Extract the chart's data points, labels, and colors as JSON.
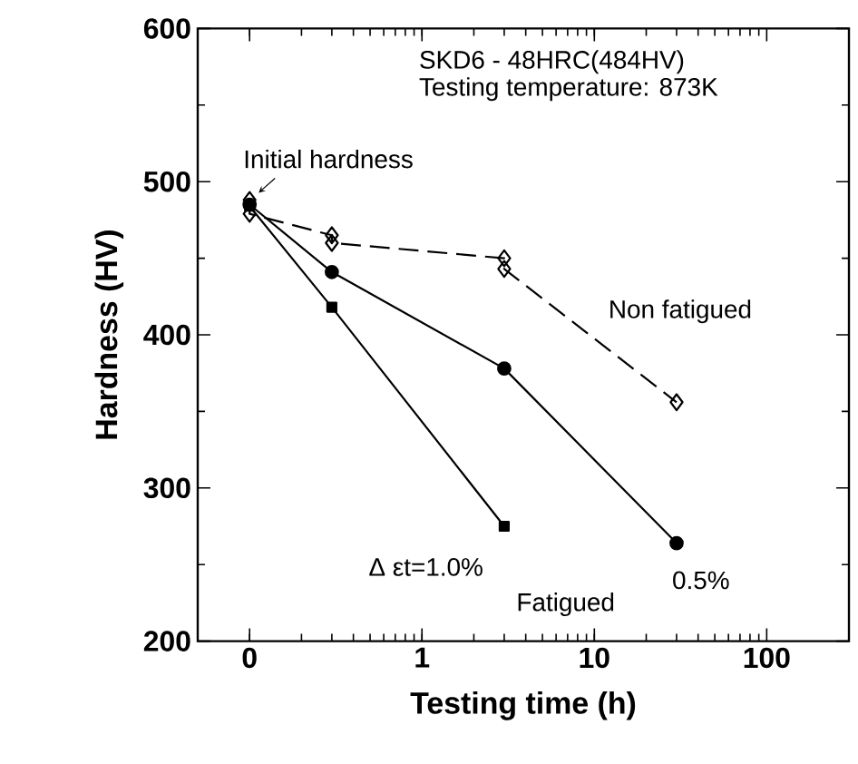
{
  "chart_data": {
    "type": "line",
    "xlabel": "Testing time (h)",
    "ylabel": "Hardness (HV)",
    "log": "x",
    "xlim": [
      0.05,
      300
    ],
    "ylim": [
      200,
      600
    ],
    "xticks": [
      {
        "value": 0.1,
        "label": "0"
      },
      1,
      10,
      100
    ],
    "yticks": [
      200,
      300,
      400,
      500,
      600
    ],
    "series": [
      {
        "name": "Non fatigued",
        "color": "#000000",
        "marker": "diamond",
        "line_style": "dashed",
        "x": [
          0.1,
          0.1,
          0.3,
          0.3,
          3,
          3,
          30
        ],
        "values": [
          488,
          479,
          465,
          460,
          450,
          443,
          356
        ]
      },
      {
        "name": "0.5%",
        "color": "#000000",
        "marker": "circle",
        "line_style": "solid",
        "x": [
          0.1,
          0.3,
          3,
          30
        ],
        "values": [
          485,
          441,
          378,
          264
        ]
      },
      {
        "name": "Δ εt=1.0%",
        "color": "#000000",
        "marker": "square",
        "line_style": "solid",
        "x": [
          0.1,
          0.3,
          3
        ],
        "values": [
          484,
          418,
          275
        ]
      }
    ],
    "annotations": [
      "SKD6 - 48HRC(484HV)",
      "Testing temperature: 873K",
      {
        "text": "Initial hardness",
        "x": 0.1,
        "y": 488
      },
      "Fatigued"
    ]
  }
}
